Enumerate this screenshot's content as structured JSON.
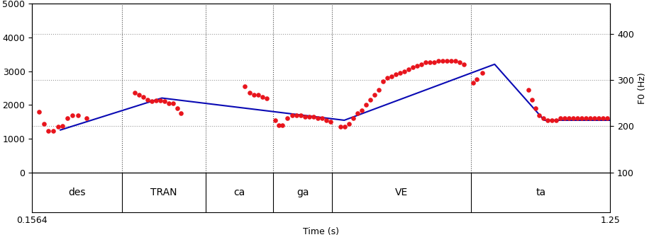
{
  "chart_data": {
    "type": "scatter",
    "x_label": "Time (s)",
    "y2_label": "F0 (Hz)",
    "xlim": [
      0.1564,
      1.25
    ],
    "xticks": [
      0.1564,
      1.25
    ],
    "ylim": [
      0,
      5000
    ],
    "yticks": [
      0,
      1000,
      2000,
      3000,
      4000,
      5000
    ],
    "y2lim": [
      100,
      465
    ],
    "y2ticks": [
      100,
      200,
      300,
      400
    ],
    "grid": true,
    "segments": [
      {
        "label": "des",
        "start": 0.1564,
        "end": 0.3268
      },
      {
        "label": "TRAN",
        "start": 0.3268,
        "end": 0.4852
      },
      {
        "label": "ca",
        "start": 0.4852,
        "end": 0.6126
      },
      {
        "label": "ga",
        "start": 0.6126,
        "end": 0.724
      },
      {
        "label": "VE",
        "start": 0.724,
        "end": 0.9871
      },
      {
        "label": "ta",
        "start": 0.9871,
        "end": 1.25
      }
    ],
    "series": [
      {
        "type": "scatter",
        "axis": "y2",
        "color": "#e8141c",
        "marker": "o",
        "x": [
          0.1698,
          0.1792,
          0.1873,
          0.1967,
          0.2061,
          0.2141,
          0.2235,
          0.2329,
          0.2436,
          0.2597,
          0.351,
          0.359,
          0.3671,
          0.3751,
          0.3832,
          0.3913,
          0.3993,
          0.4074,
          0.4154,
          0.4235,
          0.4315,
          0.4382,
          0.559,
          0.5684,
          0.5764,
          0.5845,
          0.5925,
          0.6006,
          0.6167,
          0.6234,
          0.6301,
          0.6395,
          0.6489,
          0.657,
          0.665,
          0.6731,
          0.6811,
          0.6892,
          0.6972,
          0.7053,
          0.7133,
          0.7214,
          0.7402,
          0.7482,
          0.7563,
          0.7643,
          0.7724,
          0.7804,
          0.7885,
          0.7965,
          0.8046,
          0.8126,
          0.8207,
          0.8287,
          0.8368,
          0.8448,
          0.8529,
          0.861,
          0.869,
          0.8771,
          0.8851,
          0.8932,
          0.9012,
          0.9093,
          0.9173,
          0.9254,
          0.9334,
          0.9415,
          0.9495,
          0.9576,
          0.9656,
          0.9737,
          0.9911,
          0.9978,
          1.0086,
          1.0958,
          1.1025,
          1.1092,
          1.1159,
          1.124,
          1.132,
          1.1401,
          1.1481,
          1.1562,
          1.1642,
          1.1723,
          1.1803,
          1.1884,
          1.1964,
          1.2045,
          1.2125,
          1.2206,
          1.2286,
          1.2367,
          1.2447
        ],
        "values": [
          232,
          206,
          190,
          190,
          199,
          200,
          217,
          224,
          223,
          217,
          272,
          268,
          264,
          257,
          254,
          255,
          255,
          254,
          250,
          250,
          239,
          228,
          286,
          272,
          268,
          268,
          264,
          261,
          213,
          202,
          202,
          217,
          224,
          224,
          224,
          221,
          221,
          221,
          217,
          217,
          213,
          210,
          199,
          199,
          206,
          217,
          228,
          235,
          246,
          257,
          268,
          279,
          297,
          305,
          308,
          312,
          316,
          319,
          323,
          327,
          330,
          334,
          338,
          338,
          339,
          341,
          341,
          341,
          341,
          341,
          339,
          334,
          294,
          301,
          316,
          279,
          257,
          239,
          224,
          217,
          213,
          213,
          213,
          217,
          217,
          217,
          217,
          217,
          217,
          217,
          217,
          217,
          217,
          217,
          217
        ]
      },
      {
        "type": "line",
        "axis": "y2",
        "color": "#0a0ab4",
        "line_style": "solid",
        "x": [
          0.2101,
          0.402,
          0.747,
          1.0314,
          1.1253,
          1.25
        ],
        "values": [
          192,
          261,
          213,
          334,
          213,
          213
        ]
      }
    ]
  }
}
